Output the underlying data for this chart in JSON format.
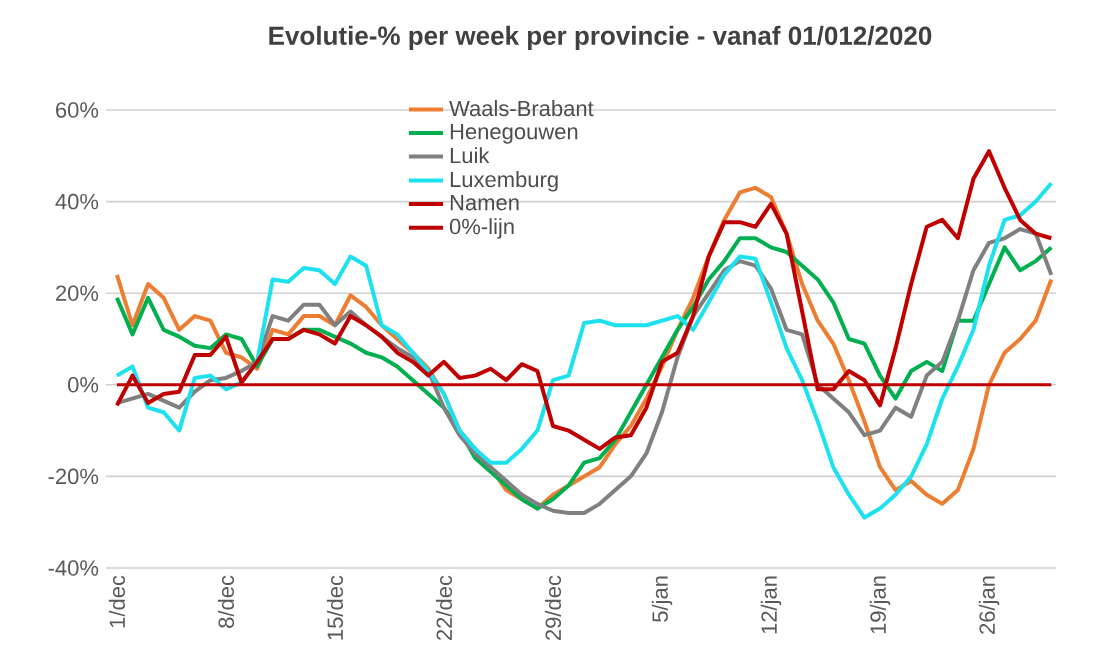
{
  "chart_data": {
    "type": "line",
    "title": "Evolutie-% per week per provincie - vanaf 01/012/2020",
    "categories": [
      "1/dec",
      null,
      null,
      null,
      null,
      null,
      null,
      "8/dec",
      null,
      null,
      null,
      null,
      null,
      null,
      "15/dec",
      null,
      null,
      null,
      null,
      null,
      null,
      "22/dec",
      null,
      null,
      null,
      null,
      null,
      null,
      "29/dec",
      null,
      null,
      null,
      null,
      null,
      null,
      "5/jan",
      null,
      null,
      null,
      null,
      null,
      null,
      "12/jan",
      null,
      null,
      null,
      null,
      null,
      null,
      "19/jan",
      null,
      null,
      null,
      null,
      null,
      null,
      "26/jan",
      null,
      null,
      null,
      null
    ],
    "series": [
      {
        "name": "Waals-Brabant",
        "color": "#ed7d31",
        "values": [
          24,
          13,
          22,
          19,
          12,
          15,
          14,
          7,
          6,
          3.5,
          12,
          11,
          15,
          15,
          13,
          19.5,
          17,
          13,
          10,
          7,
          3.5,
          -2,
          -10,
          -14,
          -18,
          -23,
          -25,
          -27,
          -24,
          -22,
          -20,
          -18,
          -13,
          -9,
          -3,
          4,
          12,
          19,
          28,
          36,
          42,
          43,
          41,
          33,
          22,
          14,
          9,
          1,
          -8,
          -18,
          -23,
          -21,
          -24,
          -26,
          -23,
          -14,
          0,
          7,
          10,
          14,
          23
        ]
      },
      {
        "name": "Henegouwen",
        "color": "#00b050",
        "values": [
          19,
          11,
          19,
          12,
          10.5,
          8.5,
          8,
          11,
          10,
          4,
          10,
          10,
          12,
          12,
          10.5,
          9,
          7,
          6,
          4,
          1,
          -2,
          -5,
          -10,
          -16,
          -19,
          -22,
          -25,
          -27,
          -25,
          -22,
          -17,
          -16,
          -12,
          -6,
          0,
          6,
          12,
          17,
          23,
          27,
          32,
          32,
          30,
          29,
          26,
          23,
          18,
          10,
          9,
          2,
          -3,
          3,
          5,
          3,
          14,
          14,
          22,
          30,
          25,
          27,
          30
        ]
      },
      {
        "name": "Luik",
        "color": "#808080",
        "values": [
          -4,
          -3,
          -2,
          -3.5,
          -5,
          -1.5,
          1,
          1.5,
          3,
          5,
          15,
          14,
          17.5,
          17.5,
          13,
          16,
          13,
          10.5,
          8,
          6,
          3,
          -5,
          -11,
          -15,
          -18,
          -21,
          -24,
          -26,
          -27.5,
          -28,
          -28,
          -26,
          -23,
          -20,
          -15,
          -6,
          6,
          15,
          20,
          25,
          27,
          26,
          21,
          12,
          11,
          0,
          -3,
          -6,
          -11,
          -10,
          -5,
          -7,
          2,
          5,
          14,
          25,
          31,
          32,
          34,
          33,
          24
        ]
      },
      {
        "name": "Luxemburg",
        "color": "#1ee1f0",
        "values": [
          2,
          4,
          -5,
          -6,
          -10,
          1.5,
          2,
          -1,
          0.5,
          5,
          23,
          22.5,
          25.5,
          25,
          22,
          28,
          26,
          13,
          11,
          7,
          3,
          -2,
          -10,
          -14,
          -17,
          -17,
          -14,
          -10,
          1,
          2,
          13.5,
          14,
          13,
          13,
          13,
          14,
          15,
          12,
          18,
          24,
          28,
          27.5,
          18,
          8,
          1,
          -8,
          -18,
          -24,
          -29,
          -27,
          -24,
          -20,
          -13,
          -3,
          4,
          12,
          26,
          36,
          37,
          40,
          44
        ]
      },
      {
        "name": "Namen",
        "color": "#c00000",
        "values": [
          -4.5,
          2,
          -4,
          -2,
          -1.5,
          6.5,
          6.5,
          10.5,
          0.5,
          5,
          10,
          10,
          12,
          11,
          9,
          15,
          13,
          10.5,
          7,
          5,
          2,
          5,
          1.5,
          2,
          3.5,
          1,
          4.5,
          3,
          -9,
          -10,
          -12,
          -14,
          -11.5,
          -11,
          -5,
          5,
          7,
          15,
          28,
          35.5,
          35.5,
          34.5,
          39.5,
          33,
          16,
          -1,
          -1,
          3,
          1,
          -4.5,
          8,
          22,
          34.5,
          36,
          32,
          45,
          51,
          43,
          36,
          33,
          32
        ]
      }
    ],
    "ref_lines": [
      {
        "axis": "y",
        "value": 0,
        "label": "0%-lijn",
        "color": "#c00000"
      }
    ],
    "ylim": [
      -40,
      60
    ],
    "yticks": [
      {
        "value": -40,
        "label": "-40%"
      },
      {
        "value": -20,
        "label": "-20%"
      },
      {
        "value": 0,
        "label": "0%"
      },
      {
        "value": 20,
        "label": "20%"
      },
      {
        "value": 40,
        "label": "40%"
      },
      {
        "value": 60,
        "label": "60%"
      }
    ],
    "grid": "y",
    "legend": "top",
    "marker": "none",
    "line_style": "solid"
  }
}
